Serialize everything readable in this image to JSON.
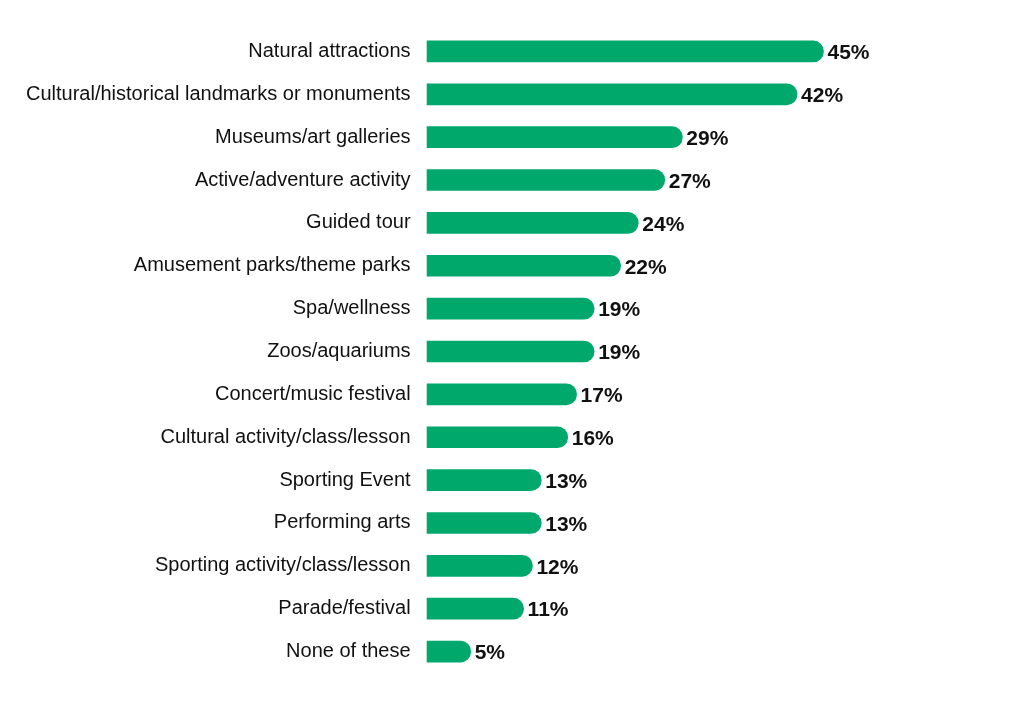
{
  "chart_data": {
    "type": "bar",
    "orientation": "horizontal",
    "tick_labels": "y",
    "legend": false,
    "categories": [
      "Natural attractions",
      "Cultural/historical landmarks or monuments",
      "Museums/art galleries",
      "Active/adventure activity",
      "Guided tour",
      "Amusement parks/theme parks",
      "Spa/wellness",
      "Zoos/aquariums",
      "Concert/music festival",
      "Cultural activity/class/lesson",
      "Sporting Event",
      "Performing arts",
      "Sporting activity/class/lesson",
      "Parade/festival",
      "None of these"
    ],
    "values": [
      45,
      42,
      29,
      27,
      24,
      22,
      19,
      19,
      17,
      16,
      13,
      13,
      12,
      11,
      5
    ],
    "value_labels": [
      "45%",
      "42%",
      "29%",
      "27%",
      "24%",
      "22%",
      "19%",
      "19%",
      "17%",
      "16%",
      "13%",
      "13%",
      "12%",
      "11%",
      "5%"
    ],
    "color": "#00a86b"
  }
}
